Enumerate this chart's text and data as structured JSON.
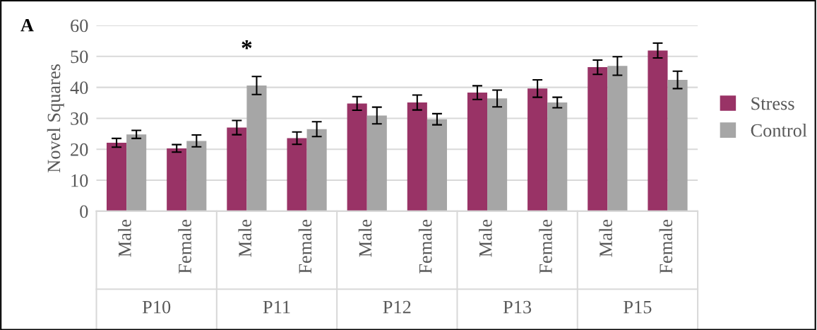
{
  "chart_data": {
    "type": "bar",
    "ylabel": "Novel Squares",
    "categories": [
      "Male",
      "Female",
      "Male",
      "Female",
      "Male",
      "Female",
      "Male",
      "Female",
      "Male",
      "Female"
    ],
    "series": [
      {
        "name": "Stress",
        "color": "#993366",
        "values": [
          22.1,
          20.3,
          27.0,
          23.6,
          34.8,
          35.1,
          38.3,
          39.6,
          46.5,
          51.9
        ],
        "errors": [
          1.4,
          1.2,
          2.3,
          2.0,
          2.2,
          2.4,
          2.2,
          2.8,
          2.3,
          2.4
        ]
      },
      {
        "name": "Control",
        "color": "#a6a6a6",
        "values": [
          24.8,
          22.7,
          40.6,
          26.5,
          30.9,
          29.7,
          36.4,
          35.1,
          46.9,
          42.4
        ],
        "errors": [
          1.3,
          1.9,
          2.9,
          2.4,
          2.7,
          1.8,
          2.7,
          1.7,
          3.0,
          2.8
        ]
      }
    ],
    "annotations": [
      "A",
      "*",
      "P10",
      "P11",
      "P12",
      "P13",
      "P15"
    ],
    "ylim": [
      0,
      60
    ],
    "yticks": [
      0,
      10,
      20,
      30,
      40,
      50,
      60
    ],
    "grid": "y",
    "legend": "right"
  }
}
